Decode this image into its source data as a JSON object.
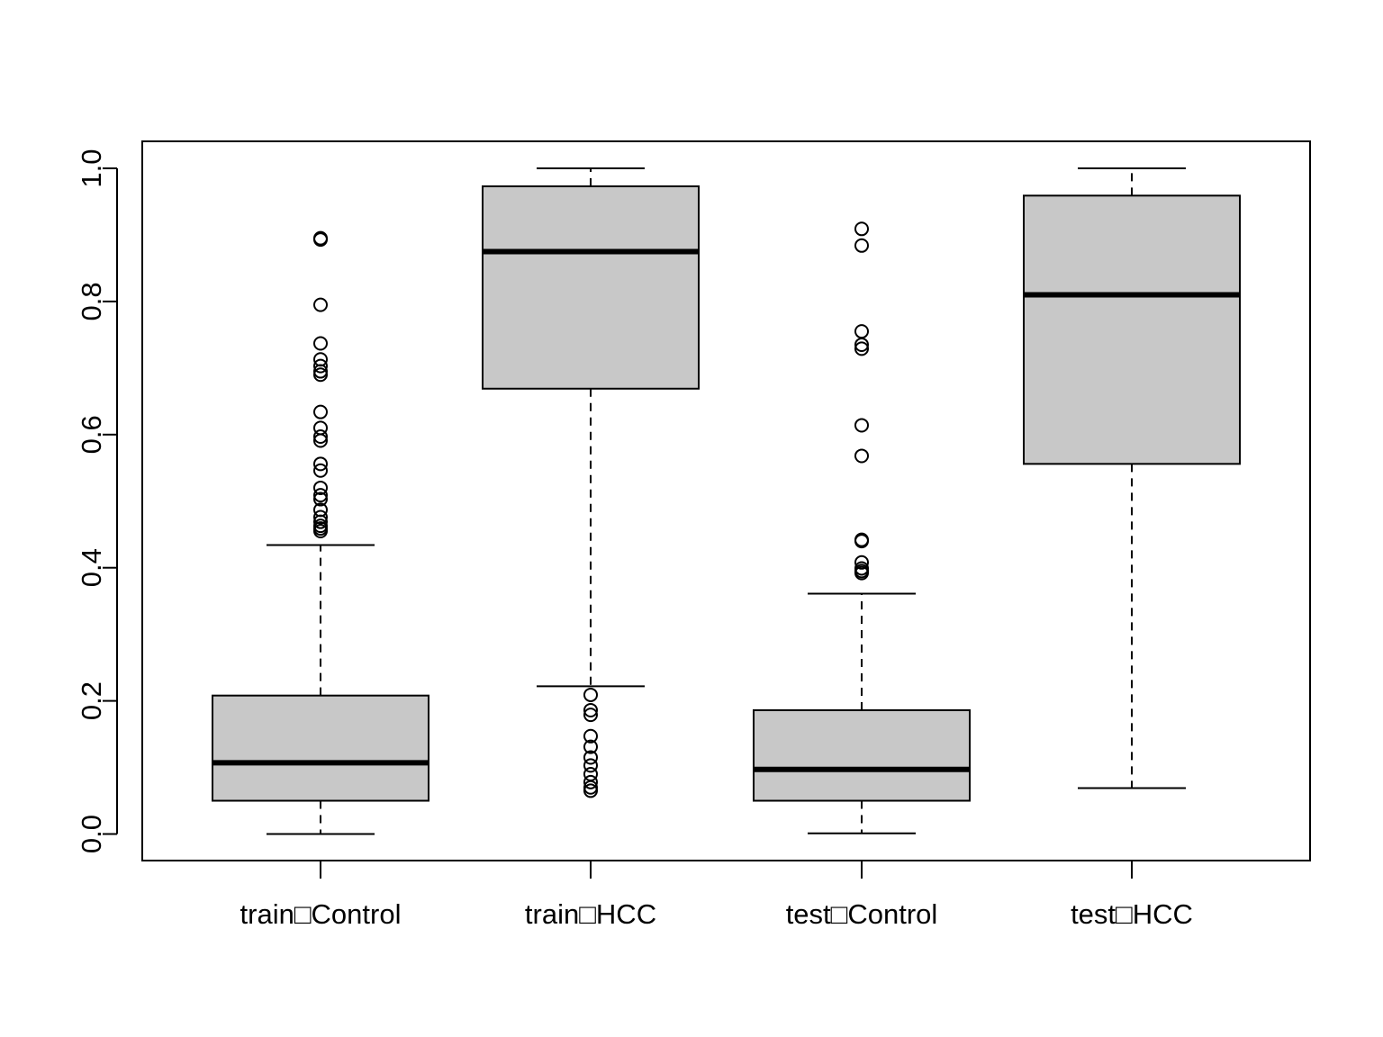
{
  "chart_data": {
    "type": "boxplot",
    "title": "",
    "xlabel": "",
    "ylabel": "",
    "ylim": [
      -0.04,
      1.04
    ],
    "yticks": [
      "0.0",
      "0.2",
      "0.4",
      "0.6",
      "0.8",
      "1.0"
    ],
    "categories": [
      "train□Control",
      "train□HCC",
      "test□Control",
      "test□HCC"
    ],
    "box_fill": "#c8c8c8",
    "line_color": "#000000",
    "boxes": [
      {
        "category": "train□Control",
        "whisker_low": 0.0,
        "q1": 0.05,
        "median": 0.107,
        "q3": 0.208,
        "whisker_high": 0.434,
        "outliers": [
          0.893,
          0.895,
          0.795,
          0.737,
          0.713,
          0.703,
          0.695,
          0.69,
          0.634,
          0.61,
          0.597,
          0.591,
          0.556,
          0.546,
          0.52,
          0.509,
          0.503,
          0.487,
          0.476,
          0.469,
          0.463,
          0.459,
          0.455
        ]
      },
      {
        "category": "train□HCC",
        "whisker_low": 0.222,
        "q1": 0.669,
        "median": 0.875,
        "q3": 0.973,
        "whisker_high": 1.0,
        "outliers": [
          0.209,
          0.186,
          0.179,
          0.147,
          0.131,
          0.115,
          0.103,
          0.09,
          0.078,
          0.07,
          0.065
        ]
      },
      {
        "category": "test□Control",
        "whisker_low": 0.001,
        "q1": 0.05,
        "median": 0.097,
        "q3": 0.186,
        "whisker_high": 0.361,
        "outliers": [
          0.909,
          0.884,
          0.755,
          0.735,
          0.729,
          0.614,
          0.568,
          0.442,
          0.44,
          0.408,
          0.399,
          0.395,
          0.392
        ]
      },
      {
        "category": "test□HCC",
        "whisker_low": 0.069,
        "q1": 0.556,
        "median": 0.81,
        "q3": 0.959,
        "whisker_high": 1.0,
        "outliers": []
      }
    ]
  }
}
